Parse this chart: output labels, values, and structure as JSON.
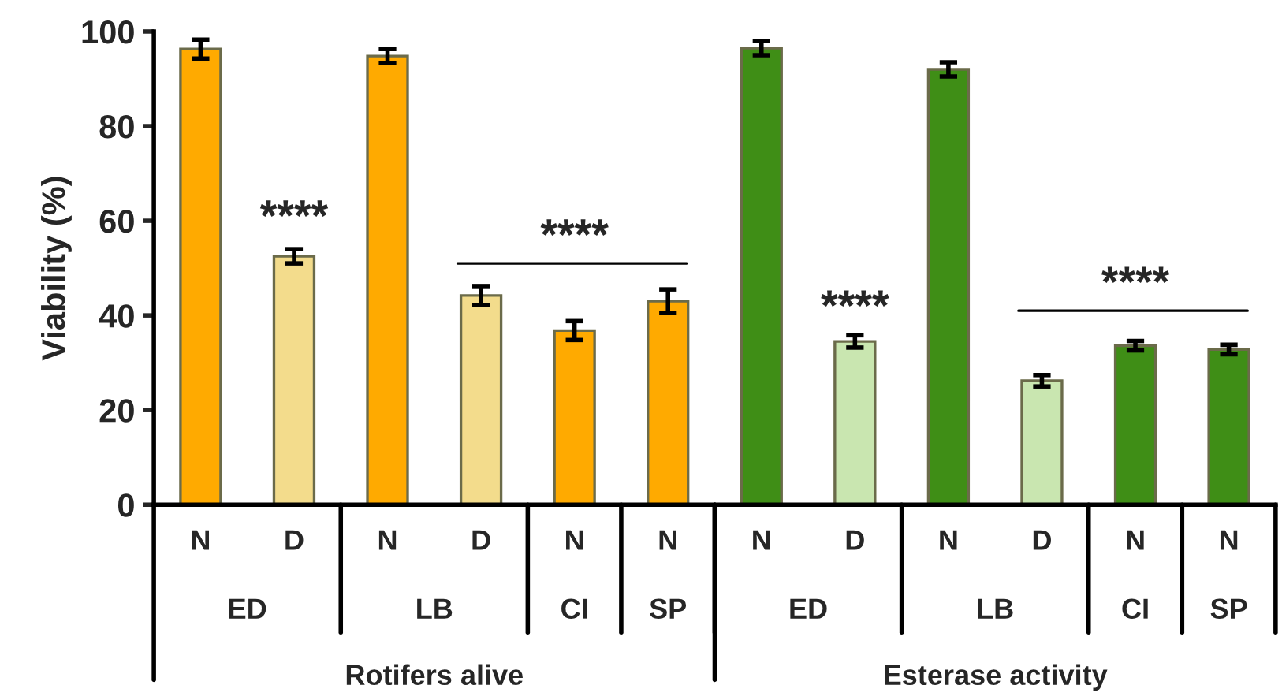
{
  "chart_data": {
    "type": "bar",
    "ylabel": "Viability (%)",
    "categories": [
      "N",
      "D",
      "N",
      "D",
      "N",
      "N",
      "N",
      "D",
      "N",
      "D",
      "N",
      "N"
    ],
    "values": [
      96.3,
      52.5,
      94.8,
      44.2,
      36.8,
      43.0,
      96.5,
      34.5,
      92.0,
      26.2,
      33.6,
      32.8
    ],
    "errors": [
      2.0,
      1.5,
      1.5,
      2.0,
      2.0,
      2.5,
      1.5,
      1.3,
      1.5,
      1.2,
      1.0,
      1.0
    ],
    "colors": [
      "#ffaa00",
      "#f3dc8c",
      "#ffaa00",
      "#f3dc8c",
      "#ffaa00",
      "#ffaa00",
      "#3f8e16",
      "#c9e6b0",
      "#3f8e16",
      "#c9e6b0",
      "#3f8e16",
      "#3f8e16"
    ],
    "ylim": [
      0,
      100
    ],
    "yticks": [
      0,
      20,
      40,
      60,
      80,
      100
    ],
    "grid": false,
    "annotations": [
      "ED",
      "LB",
      "CI",
      "SP",
      "ED",
      "LB",
      "CI",
      "SP",
      "Rotifers alive",
      "Esterase activity",
      "****",
      "****",
      "****",
      "****"
    ]
  }
}
